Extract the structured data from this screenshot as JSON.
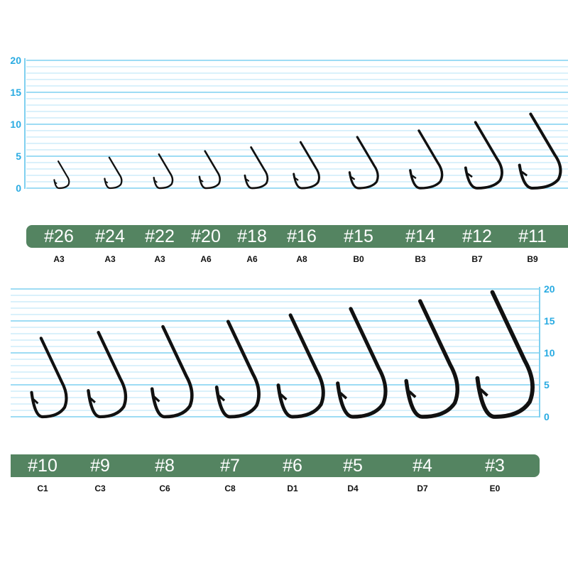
{
  "colors": {
    "grid": "#b5e3f7",
    "axis": "#7fd0f0",
    "tick_label": "#29abe2",
    "banner": "#548461",
    "hook": "#111111"
  },
  "charts": [
    {
      "axis_side": "left",
      "ticks": [
        "0",
        "5",
        "10",
        "15",
        "20"
      ],
      "hooks": [
        {
          "size": "#26",
          "code": "A3",
          "height": 4.2
        },
        {
          "size": "#24",
          "code": "A3",
          "height": 4.8
        },
        {
          "size": "#22",
          "code": "A3",
          "height": 5.3
        },
        {
          "size": "#20",
          "code": "A6",
          "height": 5.8
        },
        {
          "size": "#18",
          "code": "A6",
          "height": 6.4
        },
        {
          "size": "#16",
          "code": "A8",
          "height": 7.2
        },
        {
          "size": "#15",
          "code": "B0",
          "height": 8.0
        },
        {
          "size": "#14",
          "code": "B3",
          "height": 9.0
        },
        {
          "size": "#12",
          "code": "B7",
          "height": 10.3
        },
        {
          "size": "#11",
          "code": "B9",
          "height": 11.6
        }
      ]
    },
    {
      "axis_side": "right",
      "ticks": [
        "0",
        "5",
        "10",
        "15",
        "20"
      ],
      "hooks": [
        {
          "size": "#10",
          "code": "C1",
          "height": 12.3
        },
        {
          "size": "#9",
          "code": "C3",
          "height": 13.2
        },
        {
          "size": "#8",
          "code": "C6",
          "height": 14.1
        },
        {
          "size": "#7",
          "code": "C8",
          "height": 14.9
        },
        {
          "size": "#6",
          "code": "D1",
          "height": 15.9
        },
        {
          "size": "#5",
          "code": "D4",
          "height": 16.9
        },
        {
          "size": "#4",
          "code": "D7",
          "height": 18.1
        },
        {
          "size": "#3",
          "code": "E0",
          "height": 19.5
        }
      ]
    }
  ]
}
